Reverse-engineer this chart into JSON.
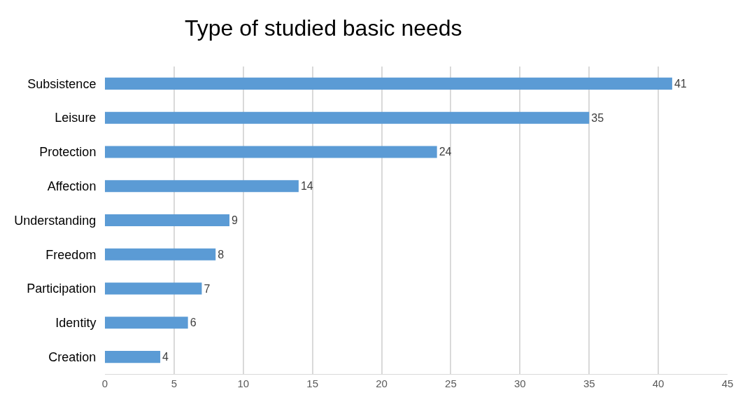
{
  "chart_data": {
    "type": "bar",
    "title": "Type of studied basic needs",
    "orientation": "horizontal",
    "categories": [
      "Subsistence",
      "Leisure",
      "Protection",
      "Affection",
      "Understanding",
      "Freedom",
      "Participation",
      "Identity",
      "Creation"
    ],
    "values": [
      41,
      35,
      24,
      14,
      9,
      8,
      7,
      6,
      4
    ],
    "color": "#5b9bd5",
    "xlim": [
      0,
      45
    ],
    "xticks": [
      0,
      5,
      10,
      15,
      20,
      25,
      30,
      35,
      40,
      45
    ],
    "grid": "x",
    "data_labels": true,
    "legend": false
  }
}
